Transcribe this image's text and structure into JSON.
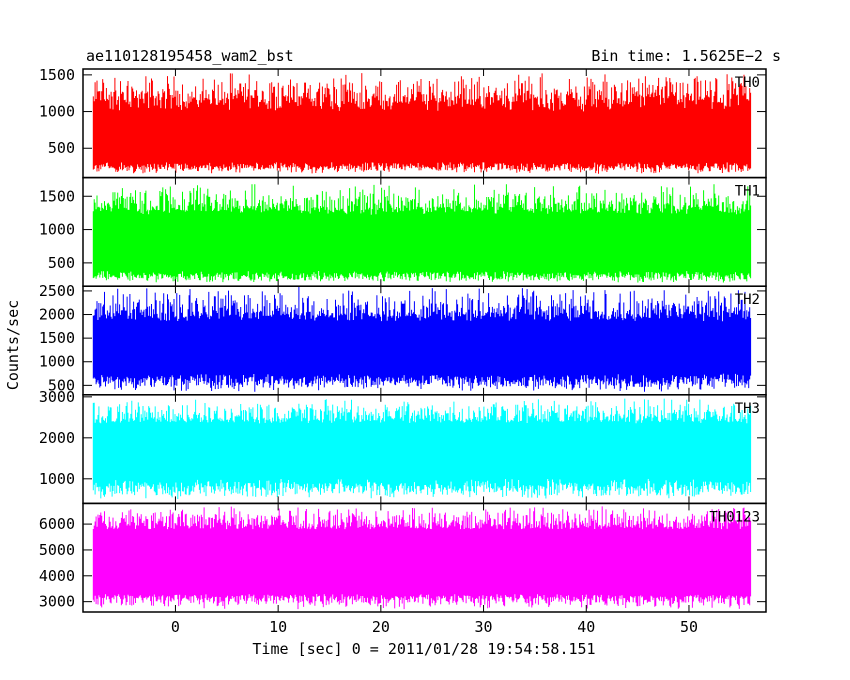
{
  "header": {
    "left_title": "ae110128195458_wam2_bst",
    "right_title": "Bin time: 1.5625E−2 s"
  },
  "chart_data": {
    "type": "line",
    "title": "ae110128195458_wam2_bst",
    "subtitle": "Bin time: 1.5625E−2 s",
    "xlabel": "Time [sec] 0 = 2011/01/28 19:54:58.151",
    "ylabel": "Counts/sec",
    "xlim": [
      -9.0,
      57.5
    ],
    "data_xrange": [
      -8.0,
      56.0
    ],
    "bin_time": 0.015625,
    "grid": false,
    "x_ticks": [
      0,
      10,
      20,
      30,
      40,
      50
    ],
    "x_tick_labels": [
      "0",
      "10",
      "20",
      "30",
      "40",
      "50"
    ],
    "panels": [
      {
        "name": "TH0",
        "color": "#ff0000",
        "ylim": [
          100,
          1580
        ],
        "y_ticks": [
          500,
          1000,
          1500
        ],
        "y_tick_labels": [
          "500",
          "1000",
          "1500"
        ],
        "min_env": [
          150,
          180,
          210,
          230
        ],
        "max_env": [
          1180,
          1280,
          1400,
          1560
        ],
        "bulk_top": 1000,
        "bulk_bottom": 310
      },
      {
        "name": "TH1",
        "color": "#00ff00",
        "ylim": [
          150,
          1780
        ],
        "y_ticks": [
          500,
          1000,
          1500
        ],
        "y_tick_labels": [
          "500",
          "1000",
          "1500"
        ],
        "min_env": [
          200,
          230,
          260,
          290
        ],
        "max_env": [
          1300,
          1420,
          1560,
          1720
        ],
        "bulk_top": 1220,
        "bulk_bottom": 380
      },
      {
        "name": "TH2",
        "color": "#0000ff",
        "ylim": [
          300,
          2600
        ],
        "y_ticks": [
          500,
          1000,
          1500,
          2000,
          2500
        ],
        "y_tick_labels": [
          "500",
          "1000",
          "1500",
          "2000",
          "2500"
        ],
        "min_env": [
          350,
          420,
          500,
          600
        ],
        "max_env": [
          1950,
          2150,
          2350,
          2600
        ],
        "bulk_top": 1850,
        "bulk_bottom": 750
      },
      {
        "name": "TH3",
        "color": "#00ffff",
        "ylim": [
          400,
          3050
        ],
        "y_ticks": [
          1000,
          2000,
          3000
        ],
        "y_tick_labels": [
          "1000",
          "2000",
          "3000"
        ],
        "min_env": [
          500,
          580,
          680,
          800
        ],
        "max_env": [
          2400,
          2600,
          2800,
          3000
        ],
        "bulk_top": 2350,
        "bulk_bottom": 1000
      },
      {
        "name": "TH0123",
        "color": "#ff00ff",
        "ylim": [
          2600,
          6800
        ],
        "y_ticks": [
          3000,
          4000,
          5000,
          6000
        ],
        "y_tick_labels": [
          "3000",
          "4000",
          "5000",
          "6000"
        ],
        "min_env": [
          2700,
          2850,
          3000,
          3200
        ],
        "max_env": [
          5800,
          6150,
          6450,
          6750
        ],
        "bulk_top": 5800,
        "bulk_bottom": 3300
      }
    ]
  }
}
